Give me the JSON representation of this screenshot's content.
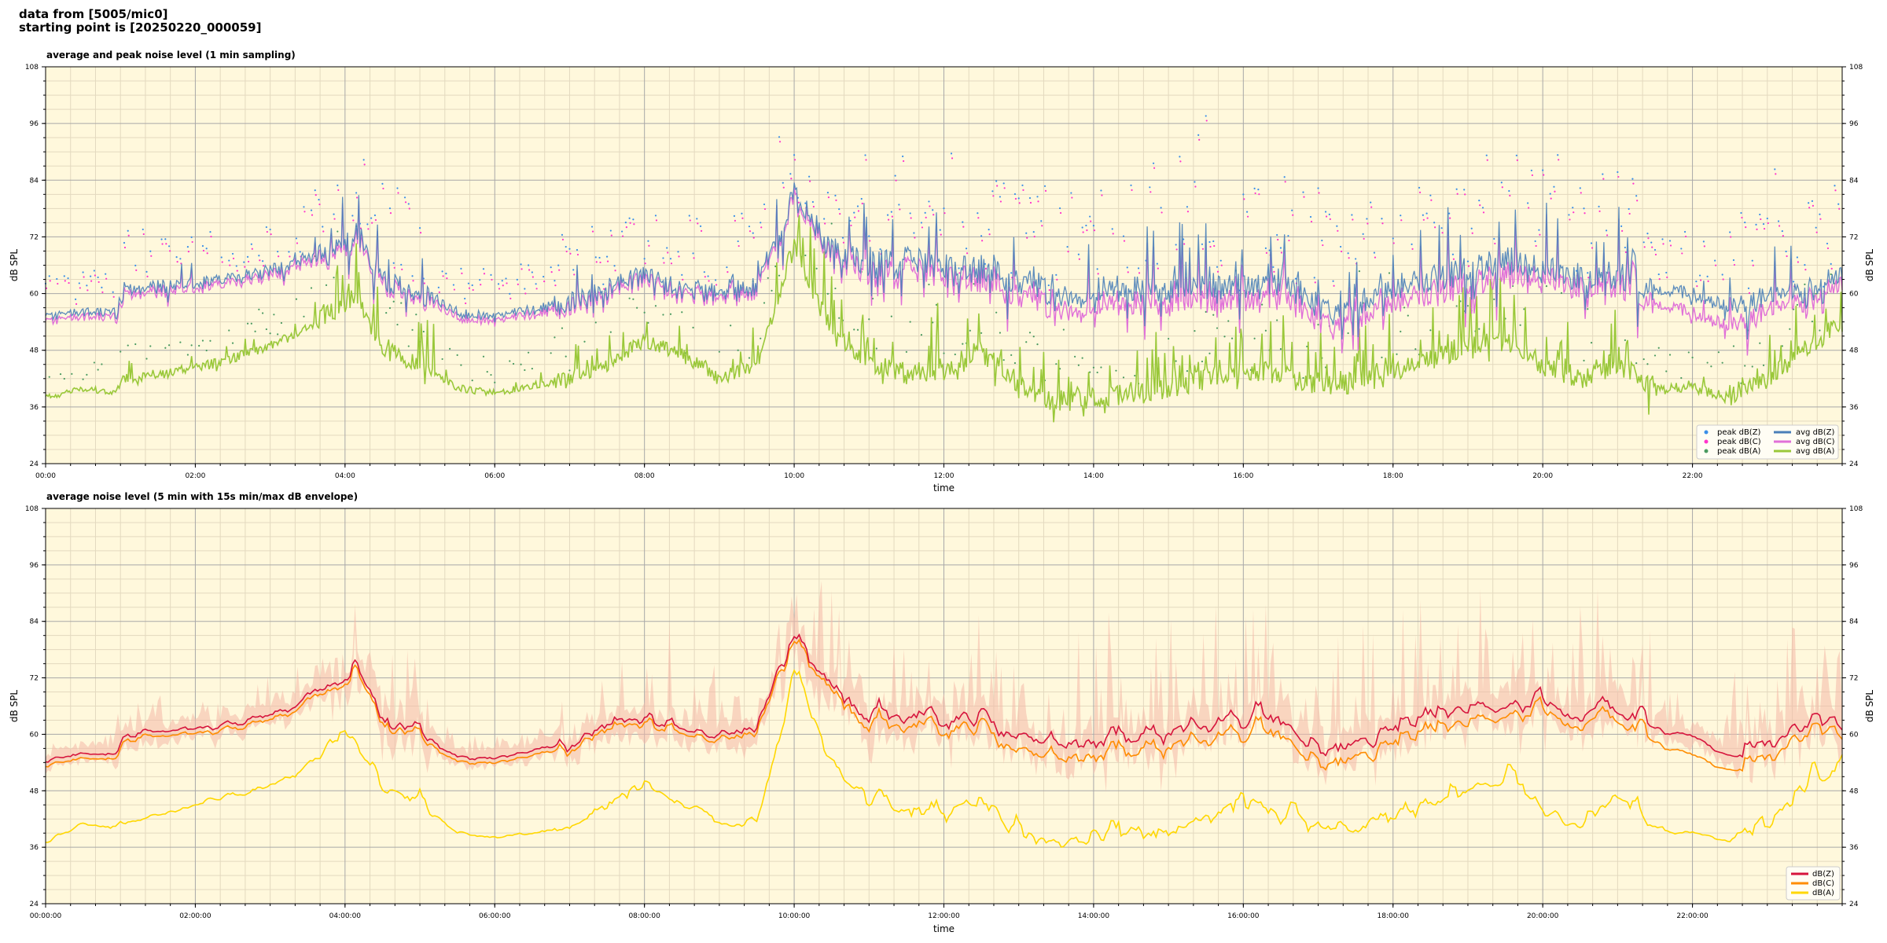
{
  "header": {
    "line1": "data from [5005/mic0]",
    "line2": "starting point is [20250220_000059]"
  },
  "colors": {
    "background": "#fff8dc",
    "grid_major": "#a8a8a8",
    "grid_minor": "#e3d9bf",
    "z_avg": "#4a7fb8",
    "c_avg": "#e070d8",
    "a_avg": "#9ac83a",
    "z_peak": "#3a8ee8",
    "c_peak": "#ff33cc",
    "a_peak": "#4a9a60",
    "dbz": "#d6143c",
    "dbc": "#ff8c00",
    "dba": "#ffd700",
    "envelope": "#f4b8a8"
  },
  "chart_data": [
    {
      "type": "scatter+line",
      "title": "average and peak noise level (1 min sampling)",
      "xlabel": "time",
      "ylabel": "dB SPL",
      "ylim": [
        24,
        108
      ],
      "xlim_hours": [
        0,
        24
      ],
      "yticks": [
        24,
        36,
        48,
        60,
        72,
        84,
        96,
        108
      ],
      "xticks": [
        "00:00",
        "02:00",
        "04:00",
        "06:00",
        "08:00",
        "10:00",
        "12:00",
        "14:00",
        "16:00",
        "18:00",
        "20:00",
        "22:00"
      ],
      "grid": true,
      "legend_position": "lower-right",
      "legend": [
        "peak dB(Z)",
        "peak dB(C)",
        "peak dB(A)",
        "avg dB(Z)",
        "avg dB(C)",
        "avg dB(A)"
      ],
      "series_keys": {
        "z": [
          [
            0,
            55
          ],
          [
            0.5,
            56
          ],
          [
            0.95,
            56
          ],
          [
            1.05,
            61
          ],
          [
            2,
            62
          ],
          [
            2.8,
            64
          ],
          [
            3.3,
            66
          ],
          [
            4,
            70
          ],
          [
            4.15,
            73
          ],
          [
            4.5,
            63
          ],
          [
            5,
            61
          ],
          [
            5.5,
            56
          ],
          [
            6,
            55
          ],
          [
            7,
            58
          ],
          [
            7.5,
            61
          ],
          [
            8,
            64
          ],
          [
            8.5,
            61
          ],
          [
            9,
            60
          ],
          [
            9.5,
            61
          ],
          [
            10,
            81
          ],
          [
            10.5,
            69
          ],
          [
            11,
            66
          ],
          [
            11.5,
            67
          ],
          [
            12,
            66
          ],
          [
            12.5,
            65
          ],
          [
            13,
            63
          ],
          [
            13.5,
            60
          ],
          [
            14,
            61
          ],
          [
            15,
            61
          ],
          [
            16,
            62
          ],
          [
            16.5,
            63
          ],
          [
            17,
            57
          ],
          [
            17.5,
            58
          ],
          [
            18,
            61
          ],
          [
            18.5,
            63
          ],
          [
            19,
            65
          ],
          [
            19.5,
            67
          ],
          [
            20,
            66
          ],
          [
            20.5,
            63
          ],
          [
            21,
            64
          ],
          [
            21.5,
            61
          ],
          [
            22,
            60
          ],
          [
            22.5,
            57
          ],
          [
            23,
            59
          ],
          [
            23.5,
            60
          ],
          [
            24,
            64
          ]
        ],
        "c": [
          [
            0,
            54
          ],
          [
            0.5,
            55
          ],
          [
            0.95,
            55
          ],
          [
            1.05,
            60
          ],
          [
            2,
            61
          ],
          [
            2.8,
            63
          ],
          [
            3.3,
            65
          ],
          [
            4,
            69
          ],
          [
            4.15,
            72
          ],
          [
            4.5,
            62
          ],
          [
            5,
            60
          ],
          [
            5.5,
            55
          ],
          [
            6,
            54
          ],
          [
            7,
            57
          ],
          [
            7.5,
            60
          ],
          [
            8,
            63
          ],
          [
            8.5,
            60
          ],
          [
            9,
            59
          ],
          [
            9.5,
            60
          ],
          [
            10,
            80
          ],
          [
            10.5,
            68
          ],
          [
            11,
            64
          ],
          [
            11.5,
            65
          ],
          [
            12,
            64
          ],
          [
            12.5,
            63
          ],
          [
            13,
            60
          ],
          [
            13.5,
            57
          ],
          [
            14,
            58
          ],
          [
            15,
            58
          ],
          [
            16,
            59
          ],
          [
            16.5,
            60
          ],
          [
            17,
            54
          ],
          [
            17.5,
            55
          ],
          [
            18,
            58
          ],
          [
            18.5,
            60
          ],
          [
            19,
            62
          ],
          [
            19.5,
            64
          ],
          [
            20,
            64
          ],
          [
            20.5,
            61
          ],
          [
            21,
            62
          ],
          [
            21.5,
            58
          ],
          [
            22,
            56
          ],
          [
            22.5,
            53
          ],
          [
            23,
            56
          ],
          [
            23.5,
            58
          ],
          [
            24,
            62
          ]
        ],
        "a": [
          [
            0,
            38
          ],
          [
            0.5,
            40
          ],
          [
            0.95,
            39
          ],
          [
            1.05,
            42
          ],
          [
            2,
            44
          ],
          [
            2.8,
            48
          ],
          [
            3.3,
            51
          ],
          [
            4,
            58
          ],
          [
            4.15,
            60
          ],
          [
            4.5,
            48
          ],
          [
            5,
            45
          ],
          [
            5.5,
            40
          ],
          [
            6,
            39
          ],
          [
            7,
            42
          ],
          [
            7.5,
            45
          ],
          [
            8,
            50
          ],
          [
            8.5,
            47
          ],
          [
            9,
            42
          ],
          [
            9.5,
            45
          ],
          [
            10,
            70
          ],
          [
            10.5,
            52
          ],
          [
            11,
            45
          ],
          [
            11.5,
            43
          ],
          [
            12,
            44
          ],
          [
            12.5,
            48
          ],
          [
            13,
            40
          ],
          [
            13.5,
            37
          ],
          [
            14,
            38
          ],
          [
            15,
            40
          ],
          [
            16,
            44
          ],
          [
            16.5,
            43
          ],
          [
            17,
            40
          ],
          [
            17.5,
            41
          ],
          [
            18,
            43
          ],
          [
            18.5,
            46
          ],
          [
            19,
            49
          ],
          [
            19.5,
            50
          ],
          [
            20,
            45
          ],
          [
            20.5,
            42
          ],
          [
            21,
            45
          ],
          [
            21.5,
            40
          ],
          [
            22,
            40
          ],
          [
            22.5,
            38
          ],
          [
            23,
            42
          ],
          [
            23.5,
            48
          ],
          [
            24,
            54
          ]
        ]
      }
    },
    {
      "type": "line+envelope",
      "title": "average noise level (5 min with 15s min/max dB envelope)",
      "xlabel": "time",
      "ylabel": "dB SPL",
      "ylim": [
        24,
        108
      ],
      "xlim_hours": [
        0,
        24
      ],
      "yticks": [
        24,
        36,
        48,
        60,
        72,
        84,
        96,
        108
      ],
      "xticks": [
        "00:00:00",
        "02:00:00",
        "04:00:00",
        "06:00:00",
        "08:00:00",
        "10:00:00",
        "12:00:00",
        "14:00:00",
        "16:00:00",
        "18:00:00",
        "20:00:00",
        "22:00:00"
      ],
      "grid": true,
      "legend_position": "lower-right",
      "legend": [
        "dB(Z)",
        "dB(C)",
        "dB(A)"
      ],
      "series_keys": {
        "z": [
          [
            0,
            54
          ],
          [
            0.5,
            56
          ],
          [
            0.95,
            56
          ],
          [
            1.05,
            60
          ],
          [
            2,
            61
          ],
          [
            2.8,
            63
          ],
          [
            3.3,
            66
          ],
          [
            4,
            72
          ],
          [
            4.15,
            74
          ],
          [
            4.5,
            64
          ],
          [
            5,
            60
          ],
          [
            5.5,
            55
          ],
          [
            6,
            55
          ],
          [
            7,
            58
          ],
          [
            7.5,
            62
          ],
          [
            8,
            63
          ],
          [
            8.5,
            61
          ],
          [
            9,
            60
          ],
          [
            9.5,
            61
          ],
          [
            10,
            80
          ],
          [
            10.5,
            70
          ],
          [
            11,
            64
          ],
          [
            11.5,
            63
          ],
          [
            12,
            63
          ],
          [
            12.5,
            64
          ],
          [
            13,
            60
          ],
          [
            13.5,
            57
          ],
          [
            14,
            59
          ],
          [
            15,
            60
          ],
          [
            16,
            62
          ],
          [
            16.5,
            63
          ],
          [
            17,
            56
          ],
          [
            17.5,
            58
          ],
          [
            18,
            61
          ],
          [
            18.5,
            64
          ],
          [
            19,
            66
          ],
          [
            19.5,
            66
          ],
          [
            20,
            67
          ],
          [
            20.5,
            63
          ],
          [
            21,
            66
          ],
          [
            21.5,
            61
          ],
          [
            22,
            60
          ],
          [
            22.5,
            55
          ],
          [
            23,
            58
          ],
          [
            23.5,
            62
          ],
          [
            24,
            64
          ]
        ],
        "c": [
          [
            0,
            53
          ],
          [
            0.5,
            55
          ],
          [
            0.95,
            55
          ],
          [
            1.05,
            59
          ],
          [
            2,
            60
          ],
          [
            2.8,
            62
          ],
          [
            3.3,
            65
          ],
          [
            4,
            71
          ],
          [
            4.15,
            73
          ],
          [
            4.5,
            63
          ],
          [
            5,
            59
          ],
          [
            5.5,
            54
          ],
          [
            6,
            54
          ],
          [
            7,
            57
          ],
          [
            7.5,
            61
          ],
          [
            8,
            62
          ],
          [
            8.5,
            60
          ],
          [
            9,
            59
          ],
          [
            9.5,
            60
          ],
          [
            10,
            79
          ],
          [
            10.5,
            69
          ],
          [
            11,
            62
          ],
          [
            11.5,
            61
          ],
          [
            12,
            61
          ],
          [
            12.5,
            62
          ],
          [
            13,
            57
          ],
          [
            13.5,
            54
          ],
          [
            14,
            56
          ],
          [
            15,
            57
          ],
          [
            16,
            59
          ],
          [
            16.5,
            60
          ],
          [
            17,
            53
          ],
          [
            17.5,
            55
          ],
          [
            18,
            58
          ],
          [
            18.5,
            61
          ],
          [
            19,
            63
          ],
          [
            19.5,
            64
          ],
          [
            20,
            65
          ],
          [
            20.5,
            61
          ],
          [
            21,
            64
          ],
          [
            21.5,
            58
          ],
          [
            22,
            56
          ],
          [
            22.5,
            52
          ],
          [
            23,
            55
          ],
          [
            23.5,
            60
          ],
          [
            24,
            62
          ]
        ],
        "a": [
          [
            0,
            37
          ],
          [
            0.5,
            41
          ],
          [
            0.95,
            40
          ],
          [
            1.05,
            41
          ],
          [
            2,
            45
          ],
          [
            2.8,
            48
          ],
          [
            3.3,
            51
          ],
          [
            4,
            60
          ],
          [
            4.15,
            58
          ],
          [
            4.5,
            48
          ],
          [
            5,
            45
          ],
          [
            5.5,
            39
          ],
          [
            6,
            38
          ],
          [
            7,
            40
          ],
          [
            7.5,
            44
          ],
          [
            8,
            49
          ],
          [
            8.5,
            45
          ],
          [
            9,
            41
          ],
          [
            9.5,
            40
          ],
          [
            10,
            72
          ],
          [
            10.5,
            52
          ],
          [
            11,
            46
          ],
          [
            11.5,
            43
          ],
          [
            12,
            42
          ],
          [
            12.5,
            46
          ],
          [
            13,
            38
          ],
          [
            13.5,
            36
          ],
          [
            14,
            37
          ],
          [
            15,
            38
          ],
          [
            16,
            44
          ],
          [
            16.5,
            42
          ],
          [
            17,
            40
          ],
          [
            17.5,
            39
          ],
          [
            18,
            42
          ],
          [
            18.5,
            45
          ],
          [
            19,
            48
          ],
          [
            19.5,
            50
          ],
          [
            20,
            44
          ],
          [
            20.5,
            41
          ],
          [
            21,
            46
          ],
          [
            21.5,
            40
          ],
          [
            22,
            39
          ],
          [
            22.5,
            37
          ],
          [
            23,
            41
          ],
          [
            23.5,
            48
          ],
          [
            24,
            54
          ]
        ]
      }
    }
  ]
}
